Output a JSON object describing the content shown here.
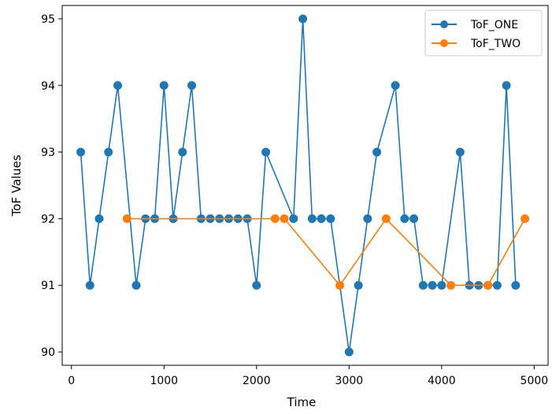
{
  "chart_data": {
    "type": "line",
    "title": "",
    "xlabel": "Time",
    "ylabel": "ToF Values",
    "xlim": [
      -100,
      5150
    ],
    "ylim": [
      89.8,
      95.2
    ],
    "xticks": [
      0,
      1000,
      2000,
      3000,
      4000,
      5000
    ],
    "yticks": [
      90,
      91,
      92,
      93,
      94,
      95
    ],
    "grid": false,
    "legend_position": "top-right",
    "series": [
      {
        "name": "ToF_ONE",
        "color": "#1f77b4",
        "marker": "circle",
        "x": [
          100,
          200,
          300,
          400,
          500,
          700,
          800,
          900,
          1000,
          1100,
          1200,
          1300,
          1400,
          1500,
          1600,
          1700,
          1800,
          1900,
          2000,
          2100,
          2400,
          2500,
          2600,
          2700,
          2800,
          3000,
          3100,
          3200,
          3300,
          3500,
          3600,
          3700,
          3800,
          3900,
          4000,
          4200,
          4300,
          4400,
          4500,
          4600,
          4700,
          4800
        ],
        "y": [
          93,
          91,
          92,
          93,
          94,
          91,
          92,
          92,
          94,
          92,
          93,
          94,
          92,
          92,
          92,
          92,
          92,
          92,
          91,
          93,
          92,
          95,
          92,
          92,
          92,
          90,
          91,
          92,
          93,
          94,
          92,
          92,
          91,
          91,
          91,
          93,
          91,
          91,
          91,
          91,
          94,
          91
        ]
      },
      {
        "name": "ToF_TWO",
        "color": "#ff7f0e",
        "marker": "circle",
        "x": [
          600,
          2200,
          2300,
          2900,
          3400,
          4100,
          4500,
          4900
        ],
        "y": [
          92,
          92,
          92,
          91,
          92,
          91,
          91,
          92
        ]
      }
    ]
  }
}
